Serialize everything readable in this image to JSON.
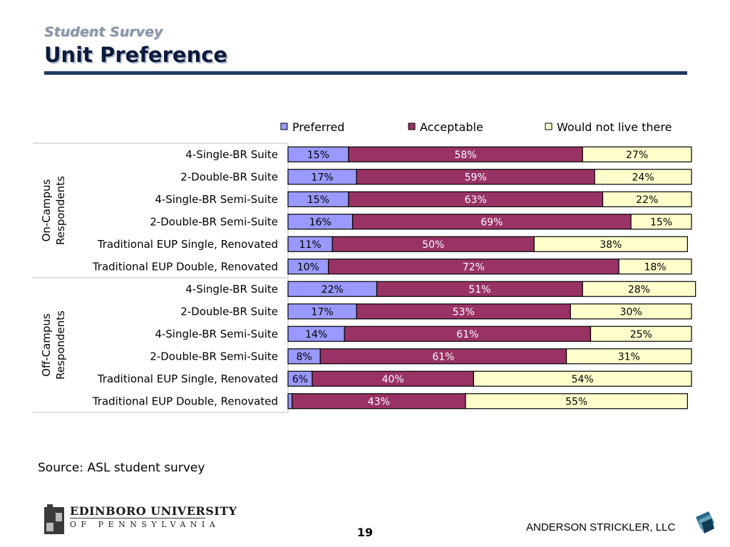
{
  "header": {
    "subtitle": "Student Survey",
    "title": "Unit Preference"
  },
  "chart_data": {
    "type": "bar",
    "orientation": "horizontal",
    "stacked": true,
    "percent": true,
    "legend": {
      "placement": "top"
    },
    "xlim": [
      0,
      100
    ],
    "groups": [
      {
        "label": "On-Campus\nRespondents",
        "label_lines": [
          "On-Campus",
          "Respondents"
        ],
        "start": 0,
        "count": 6
      },
      {
        "label": "Off-Campus\nRespondents",
        "label_lines": [
          "Off-Campus",
          "Respondents"
        ],
        "start": 6,
        "count": 6
      }
    ],
    "categories": [
      "4-Single-BR Suite",
      "2-Double-BR Suite",
      "4-Single-BR Semi-Suite",
      "2-Double-BR Semi-Suite",
      "Traditional EUP Single, Renovated",
      "Traditional EUP Double, Renovated",
      "4-Single-BR Suite",
      "2-Double-BR Suite",
      "4-Single-BR Semi-Suite",
      "2-Double-BR Semi-Suite",
      "Traditional EUP Single, Renovated",
      "Traditional EUP Double, Renovated"
    ],
    "series": [
      {
        "name": "Preferred",
        "color": "#9999ff",
        "label_color": "#000000",
        "values": [
          15,
          17,
          15,
          16,
          11,
          10,
          22,
          17,
          14,
          8,
          6,
          1
        ],
        "labels": [
          "15%",
          "17%",
          "15%",
          "16%",
          "11%",
          "10%",
          "22%",
          "17%",
          "14%",
          "8%",
          "6%",
          ""
        ]
      },
      {
        "name": "Acceptable",
        "color": "#993366",
        "label_color": "#ffffff",
        "values": [
          58,
          59,
          63,
          69,
          50,
          72,
          51,
          53,
          61,
          61,
          40,
          43
        ],
        "labels": [
          "58%",
          "59%",
          "63%",
          "69%",
          "50%",
          "72%",
          "51%",
          "53%",
          "61%",
          "61%",
          "40%",
          "43%"
        ]
      },
      {
        "name": "Would not live there",
        "color": "#ffffcc",
        "label_color": "#000000",
        "values": [
          27,
          24,
          22,
          15,
          38,
          18,
          28,
          30,
          25,
          31,
          54,
          55
        ],
        "labels": [
          "27%",
          "24%",
          "22%",
          "15%",
          "38%",
          "18%",
          "28%",
          "30%",
          "25%",
          "31%",
          "54%",
          "55%"
        ]
      }
    ]
  },
  "footer": {
    "source": "Source: ASL student survey",
    "university_name": "EDINBORO UNIVERSITY",
    "university_sub": "OF PENNSYLVANIA",
    "page_number": "19",
    "firm": "ANDERSON STRICKLER, LLC"
  }
}
